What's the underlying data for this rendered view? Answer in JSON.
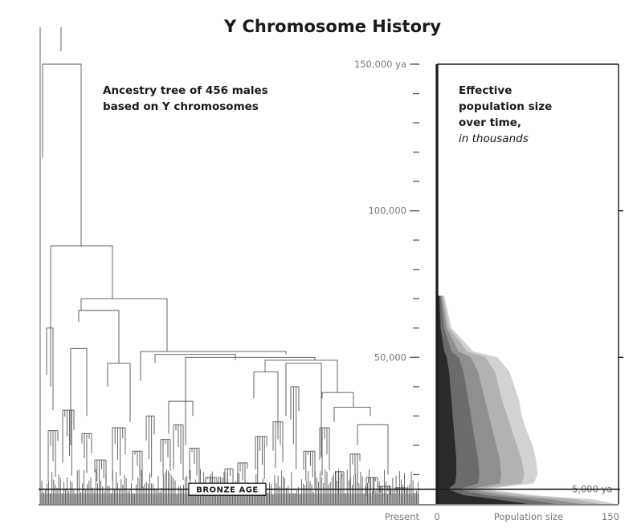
{
  "chart_data": {
    "type": "area",
    "title": "Y Chromosome History",
    "tree_annotation": [
      "Ancestry tree of 456 males",
      "based on Y chromosomes"
    ],
    "population_annotation": [
      "Effective",
      "population size",
      "over time,"
    ],
    "population_annotation_units": "in thousands",
    "time_axis": {
      "unit": "years ago",
      "range": [
        0,
        150000
      ],
      "labeled_ticks": [
        {
          "value": 150000,
          "label": "150,000 ya"
        },
        {
          "value": 100000,
          "label": "100,000"
        },
        {
          "value": 50000,
          "label": "50,000"
        },
        {
          "value": 5000,
          "label": "5,000 ya"
        }
      ],
      "minor_tick_step": 10000,
      "bottom_label": "Present"
    },
    "population_axis": {
      "label": "Population size",
      "range": [
        0,
        150
      ],
      "tick_labels": [
        {
          "value": 0,
          "label": "0"
        },
        {
          "value": 150,
          "label": "150"
        }
      ]
    },
    "marker": {
      "label": "BRONZE AGE",
      "time": 5000
    },
    "tree": {
      "male_count": 456,
      "root_time": 150000,
      "major_split_times": [
        88000,
        70000,
        66000,
        52000,
        51000,
        49000,
        48000,
        38000,
        33000,
        30000
      ]
    },
    "series": [
      {
        "name": "outer band",
        "color": "#d2d2d2",
        "time": [
          71000,
          60000,
          52000,
          50000,
          45000,
          40000,
          35000,
          30000,
          25000,
          20000,
          15000,
          10000,
          7000,
          5000,
          3000,
          1500,
          0
        ],
        "value": [
          6,
          12,
          30,
          50,
          60,
          64,
          68,
          70,
          74,
          79,
          82,
          83,
          80,
          40,
          80,
          130,
          148
        ]
      },
      {
        "name": "band 2",
        "color": "#b2b2b2",
        "time": [
          71000,
          60000,
          52000,
          50000,
          45000,
          40000,
          35000,
          30000,
          25000,
          20000,
          15000,
          10000,
          7000,
          5000,
          3000,
          1500,
          0
        ],
        "value": [
          5,
          10,
          25,
          40,
          48,
          51,
          54,
          58,
          62,
          66,
          70,
          72,
          70,
          33,
          70,
          115,
          135
        ]
      },
      {
        "name": "band 3",
        "color": "#8f8f8f",
        "time": [
          71000,
          60000,
          52000,
          50000,
          45000,
          40000,
          35000,
          30000,
          25000,
          20000,
          15000,
          10000,
          7000,
          5000,
          3000,
          1500,
          0
        ],
        "value": [
          4,
          8,
          18,
          28,
          34,
          37,
          40,
          43,
          46,
          49,
          52,
          53,
          52,
          26,
          55,
          95,
          118
        ]
      },
      {
        "name": "band 4",
        "color": "#6b6b6b",
        "time": [
          71000,
          60000,
          52000,
          50000,
          45000,
          40000,
          35000,
          30000,
          25000,
          20000,
          15000,
          10000,
          7000,
          5000,
          3000,
          1500,
          0
        ],
        "value": [
          3,
          6,
          12,
          18,
          22,
          24,
          26,
          28,
          30,
          32,
          34,
          35,
          34,
          18,
          40,
          75,
          98
        ]
      },
      {
        "name": "median",
        "color": "#2b2b2b",
        "time": [
          71000,
          60000,
          52000,
          50000,
          45000,
          40000,
          35000,
          30000,
          25000,
          20000,
          15000,
          10000,
          7000,
          5000,
          3000,
          1500,
          0
        ],
        "value": [
          2,
          3,
          6,
          8,
          10,
          11,
          12,
          13,
          14,
          15,
          16,
          16,
          15,
          9,
          22,
          50,
          75
        ]
      }
    ]
  }
}
